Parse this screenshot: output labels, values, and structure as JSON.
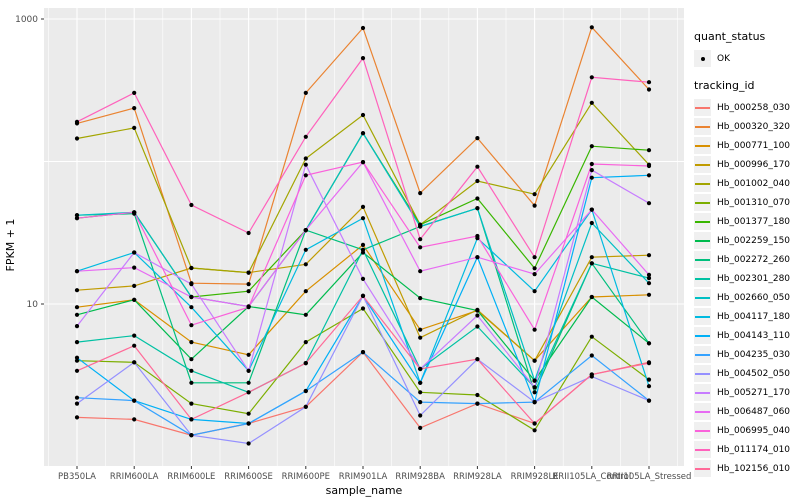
{
  "figure": {
    "background": "#FFFFFF",
    "panel_background": "#EBEBEB",
    "grid_color": "#FFFFFF",
    "tick_text_color": "#4D4D4D",
    "point_color": "#000000"
  },
  "chart_data": {
    "type": "line",
    "title": "",
    "xlabel": "sample_name",
    "ylabel": "FPKM + 1",
    "y_scale": "log10",
    "ylim": [
      1,
      1000
    ],
    "y_ticks": [
      {
        "value": 1000,
        "label": "1000"
      },
      {
        "value": 10,
        "label": "10"
      }
    ],
    "y_grid_major": [
      10,
      100,
      1000
    ],
    "grid": "on",
    "legend_position": "right",
    "categories": [
      "PB350LA",
      "RRIM600LA",
      "RRIM600LE",
      "RRIM600SE",
      "RRIM600PE",
      "RRIM901LA",
      "RRIM928BA",
      "RRIM928LA",
      "RRIM928LE",
      "RRII105LA_Control",
      "RRII105LA_Stressed"
    ],
    "series": [
      {
        "name": "Hb_000258_030",
        "color": "#F8766D",
        "values": [
          1.6,
          1.55,
          1.2,
          1.45,
          1.9,
          4.6,
          1.35,
          2.0,
          1.45,
          3.2,
          3.9
        ]
      },
      {
        "name": "Hb_000320_320",
        "color": "#EA8331",
        "values": [
          185,
          237,
          14,
          13.8,
          303,
          865,
          60,
          146,
          49,
          875,
          320
        ]
      },
      {
        "name": "Hb_000771_100",
        "color": "#D89000",
        "values": [
          9.5,
          10.7,
          5.4,
          4.4,
          12.3,
          26,
          6.6,
          9.0,
          4.0,
          11.2,
          11.6
        ]
      },
      {
        "name": "Hb_000996_170",
        "color": "#C09B00",
        "values": [
          12.5,
          13.4,
          17.9,
          16.6,
          19,
          48,
          5.8,
          9.1,
          4.0,
          21.3,
          22
        ]
      },
      {
        "name": "Hb_001002_040",
        "color": "#A3A500",
        "values": [
          145,
          172,
          17.9,
          16.6,
          105,
          212,
          36,
          73,
          59,
          258,
          95
        ]
      },
      {
        "name": "Hb_001310_070",
        "color": "#7CAE00",
        "values": [
          4.0,
          3.9,
          2.0,
          1.7,
          5.4,
          9.3,
          2.4,
          2.3,
          1.3,
          5.9,
          2.95
        ]
      },
      {
        "name": "Hb_001377_180",
        "color": "#39B600",
        "values": [
          40,
          44,
          11.2,
          12.3,
          33,
          158,
          36,
          55,
          17.8,
          128,
          120
        ]
      },
      {
        "name": "Hb_002259_150",
        "color": "#00BB4E",
        "values": [
          8.4,
          10.7,
          4.1,
          9.6,
          8.4,
          23,
          11,
          9.0,
          2.9,
          11.2,
          5.3
        ]
      },
      {
        "name": "Hb_002272_260",
        "color": "#00BF7D",
        "values": [
          42,
          43,
          2.8,
          2.8,
          33,
          24,
          35,
          47,
          2.4,
          19.3,
          5.3
        ]
      },
      {
        "name": "Hb_002301_280",
        "color": "#00C1A3",
        "values": [
          5.4,
          6.0,
          3.4,
          2.4,
          3.85,
          24,
          3.5,
          6.95,
          2.6,
          19.3,
          15.2
        ]
      },
      {
        "name": "Hb_002660_050",
        "color": "#00BFC4",
        "values": [
          42,
          44,
          11.2,
          9.6,
          33,
          158,
          35,
          47,
          2.9,
          37,
          14
        ]
      },
      {
        "name": "Hb_004117_180",
        "color": "#00BAE0",
        "values": [
          17,
          23,
          9.5,
          3.4,
          24,
          40,
          2.8,
          29,
          12.3,
          46,
          2.65
        ]
      },
      {
        "name": "Hb_004143_110",
        "color": "#00B0F6",
        "values": [
          4.2,
          2.1,
          1.55,
          1.45,
          2.45,
          11.4,
          2.8,
          21.3,
          2.05,
          77,
          80
        ]
      },
      {
        "name": "Hb_004235_030",
        "color": "#35A2FF",
        "values": [
          2.2,
          2.1,
          1.2,
          1.45,
          2.45,
          4.6,
          2.05,
          2.0,
          2.05,
          4.35,
          2.1
        ]
      },
      {
        "name": "Hb_004502_050",
        "color": "#9590FF",
        "values": [
          2.0,
          3.9,
          1.2,
          1.05,
          1.9,
          11.4,
          1.65,
          4.1,
          2.05,
          3.1,
          2.1
        ]
      },
      {
        "name": "Hb_005271_170",
        "color": "#C77CFF",
        "values": [
          7.0,
          23,
          13.8,
          3.4,
          95,
          15,
          3.5,
          8.3,
          2.6,
          87,
          51
        ]
      },
      {
        "name": "Hb_006487_060",
        "color": "#E76BF3",
        "values": [
          17,
          18,
          11.2,
          9.6,
          33,
          99,
          17,
          21.3,
          16.2,
          46,
          16
        ]
      },
      {
        "name": "Hb_006995_040",
        "color": "#FA62DB",
        "values": [
          40,
          44,
          7.1,
          9.5,
          80,
          99,
          25,
          30,
          6.6,
          96,
          93
        ]
      },
      {
        "name": "Hb_011174_010",
        "color": "#FF62BC",
        "values": [
          190,
          303,
          49.5,
          31.5,
          149,
          532,
          28.5,
          92,
          21.3,
          390,
          360
        ]
      },
      {
        "name": "Hb_102156_010",
        "color": "#FF6A98",
        "values": [
          3.4,
          5.1,
          1.55,
          2.4,
          3.85,
          11.4,
          3.5,
          4.1,
          1.45,
          3.2,
          3.85
        ]
      }
    ]
  },
  "legend": {
    "quant_status_title": "quant_status",
    "quant_status_ok_label": "OK",
    "quant_status_glyph": "black-point",
    "tracking_id_title": "tracking_id"
  }
}
